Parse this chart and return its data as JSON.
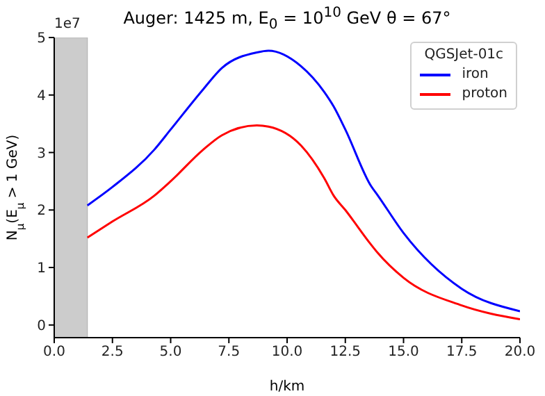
{
  "chart_data": {
    "type": "line",
    "title": "Auger: 1425 m, E$_{0}$ = 10$^{10}$ GeV θ = 67°",
    "xlabel": "h/km",
    "ylabel": "N$_{μ}$(E$_{μ}$ > 1 GeV)",
    "legend_title": "QGSJet-01c",
    "annotations": [
      "1e7"
    ],
    "x": [
      1.425,
      2.5,
      4.3,
      5,
      6.4,
      7.2,
      8.7,
      9.2,
      10.6,
      11.6,
      12,
      12.5,
      13.6,
      13.9,
      15,
      17.5,
      20
    ],
    "series": [
      {
        "name": "iron",
        "color": "#0000ff",
        "values": [
          2.08,
          2.4,
          3.05,
          3.4,
          4.1,
          4.47,
          4.74,
          4.77,
          4.5,
          4.05,
          3.8,
          3.4,
          2.42,
          2.25,
          1.6,
          0.63,
          0.24
        ]
      },
      {
        "name": "proton",
        "color": "#ff0000",
        "values": [
          1.52,
          1.8,
          2.25,
          2.5,
          3.05,
          3.3,
          3.47,
          3.45,
          3.12,
          2.55,
          2.25,
          2.0,
          1.4,
          1.25,
          0.82,
          0.34,
          0.1
        ]
      }
    ],
    "xlim": [
      0,
      20
    ],
    "xticks": [
      {
        "value": 0,
        "label": "0.0"
      },
      2.5,
      {
        "value": 5,
        "label": "5.0"
      },
      7.5,
      {
        "value": 10,
        "label": "10.0"
      },
      12.5,
      {
        "value": 15,
        "label": "15.0"
      },
      17.5,
      {
        "value": 20,
        "label": "20.0"
      }
    ],
    "ylim": [
      -0.22,
      5
    ],
    "yticks": [
      0,
      1,
      2,
      3,
      4,
      5
    ],
    "bands": [
      {
        "axis": "x",
        "from": 0,
        "to": 1.425,
        "color": "#cccccc"
      }
    ],
    "grid": false,
    "legend": "top right",
    "marker": "none",
    "line_style": "solid"
  }
}
